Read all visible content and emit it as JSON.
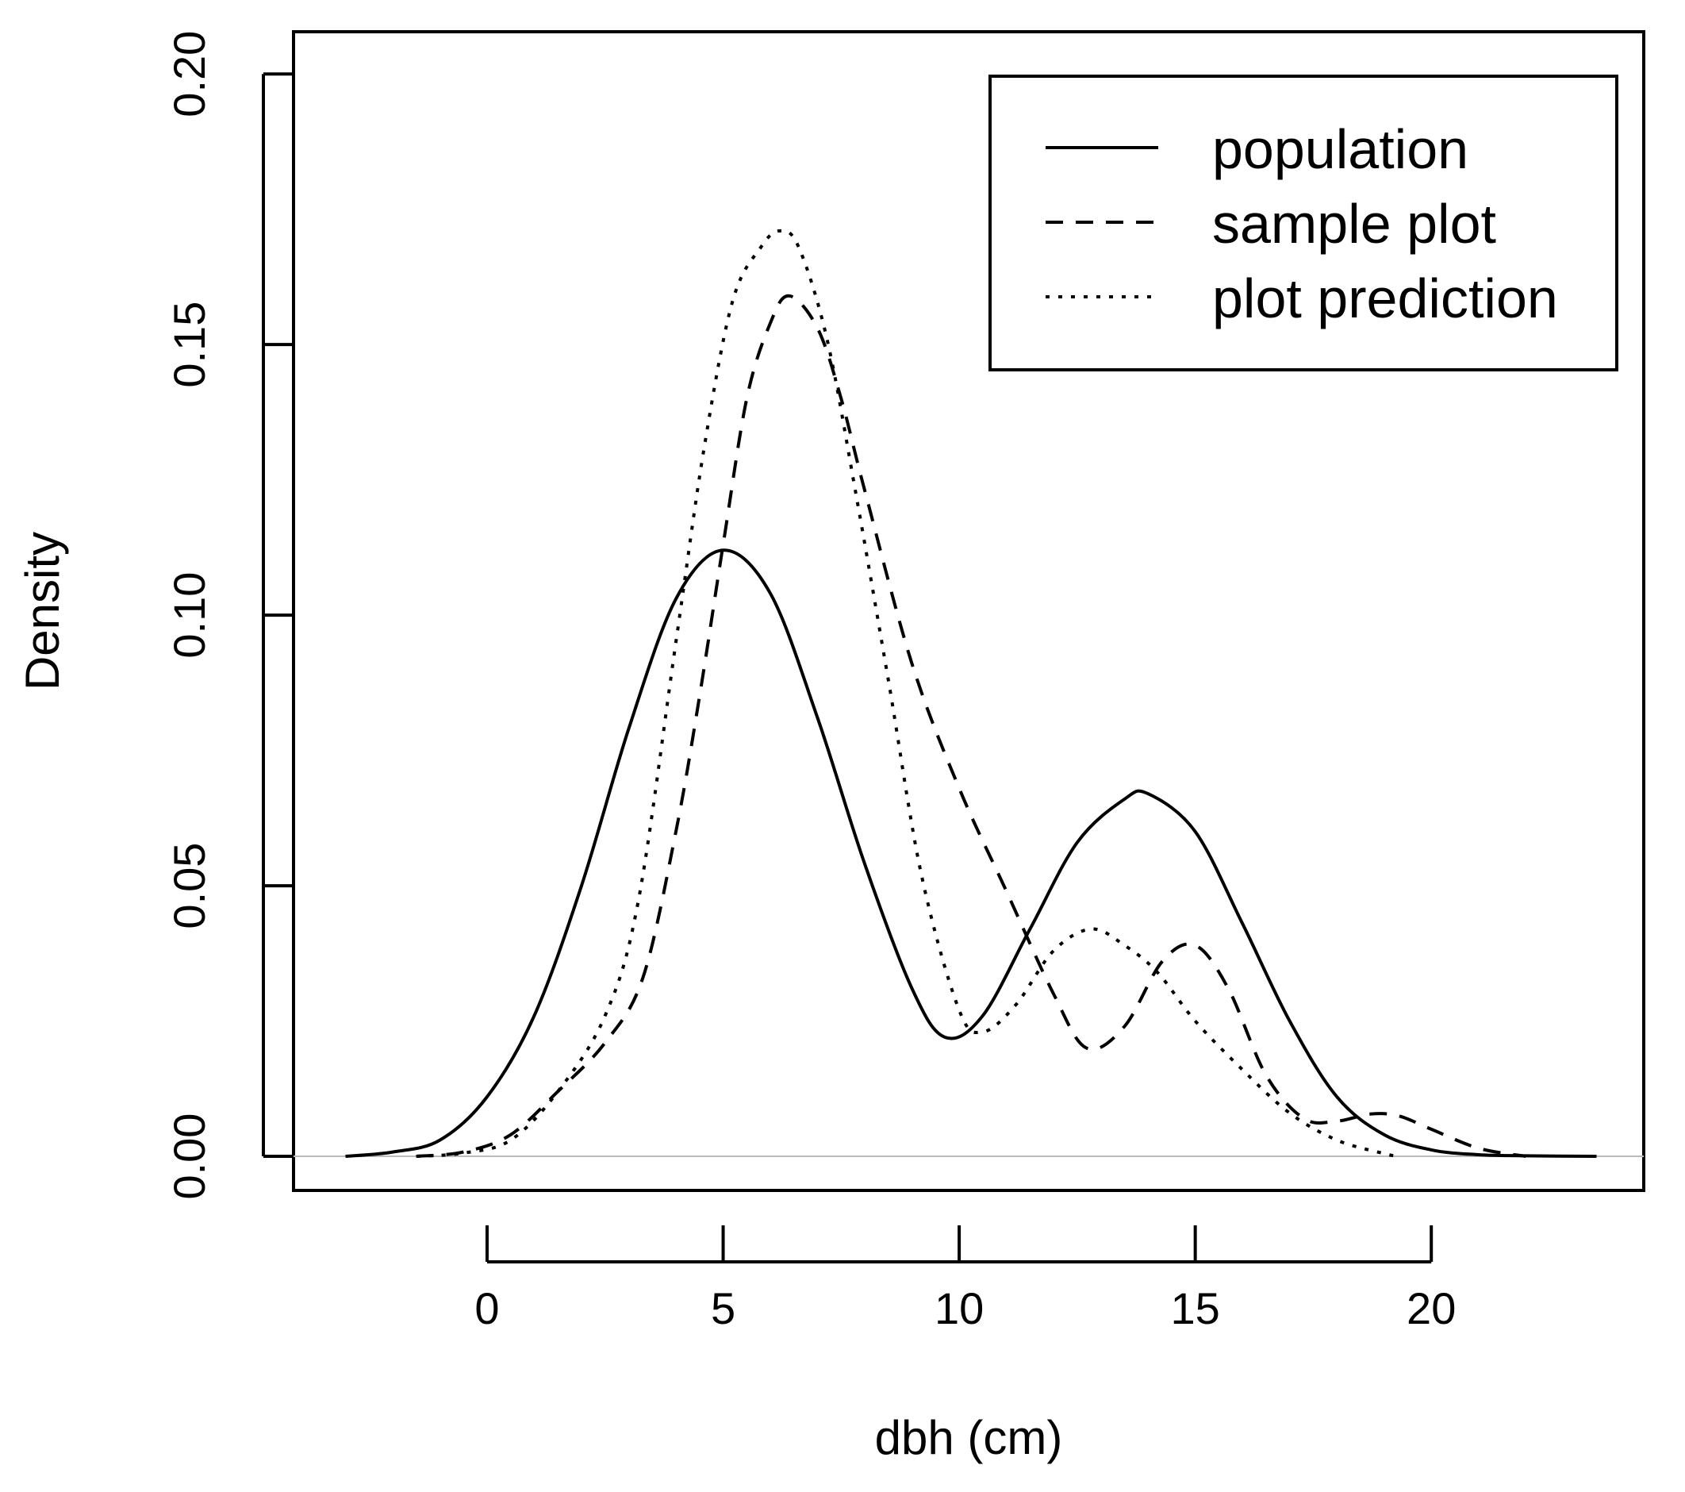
{
  "chart_data": {
    "type": "line",
    "title": "",
    "xlabel": "dbh (cm)",
    "ylabel": "Density",
    "xlim": [
      -4.1,
      24.5
    ],
    "ylim": [
      -0.0063,
      0.2078
    ],
    "x_ticks": [
      0,
      5,
      10,
      15,
      20
    ],
    "x_tick_labels": [
      "0",
      "5",
      "10",
      "15",
      "20"
    ],
    "y_ticks": [
      0.0,
      0.05,
      0.1,
      0.15,
      0.2
    ],
    "y_tick_labels": [
      "0.00",
      "0.05",
      "0.10",
      "0.15",
      "0.20"
    ],
    "grid": false,
    "zero_line": true,
    "legend": {
      "position": "top-right"
    },
    "colors": {
      "line": "#000000",
      "zero_line": "#bbbbbb"
    },
    "series": [
      {
        "name": "population",
        "style": "solid",
        "x": [
          -3,
          -2,
          -1,
          0,
          1,
          2,
          3,
          4,
          5,
          6,
          7,
          8,
          9,
          9.7,
          10.5,
          11.5,
          12.5,
          13.5,
          14,
          15,
          16,
          17,
          18,
          19,
          20,
          21,
          22,
          23.5
        ],
        "y": [
          0.0,
          0.0008,
          0.003,
          0.011,
          0.026,
          0.05,
          0.079,
          0.103,
          0.112,
          0.104,
          0.081,
          0.054,
          0.031,
          0.022,
          0.026,
          0.042,
          0.058,
          0.066,
          0.067,
          0.06,
          0.043,
          0.025,
          0.011,
          0.004,
          0.0012,
          0.0003,
          0.0001,
          0.0
        ]
      },
      {
        "name": "sample plot",
        "style": "dashed",
        "x": [
          -1.5,
          -0.5,
          0.5,
          1.5,
          2.5,
          3.3,
          4,
          4.5,
          5,
          5.5,
          6,
          6.4,
          7,
          7.5,
          8,
          9,
          10,
          11,
          12,
          12.7,
          13.5,
          14.3,
          15,
          15.7,
          16.5,
          17.3,
          18,
          18.7,
          19.3,
          20,
          21,
          22
        ],
        "y": [
          0.0,
          0.0008,
          0.004,
          0.012,
          0.021,
          0.033,
          0.06,
          0.085,
          0.113,
          0.14,
          0.154,
          0.159,
          0.153,
          0.14,
          0.123,
          0.091,
          0.068,
          0.049,
          0.03,
          0.02,
          0.024,
          0.036,
          0.039,
          0.031,
          0.015,
          0.007,
          0.0065,
          0.0078,
          0.0075,
          0.005,
          0.0015,
          0.0
        ]
      },
      {
        "name": "plot prediction",
        "style": "dotted",
        "x": [
          -1.5,
          -0.5,
          0.5,
          1.5,
          2.5,
          3.2,
          4,
          4.6,
          5.2,
          5.8,
          6.2,
          6.6,
          7.2,
          7.8,
          8.5,
          9.2,
          10,
          10.5,
          11.2,
          12,
          12.8,
          13.5,
          14.2,
          15,
          16,
          17,
          18,
          19,
          19.3
        ],
        "y": [
          0.0,
          0.0006,
          0.003,
          0.012,
          0.026,
          0.047,
          0.095,
          0.131,
          0.158,
          0.168,
          0.171,
          0.168,
          0.151,
          0.123,
          0.088,
          0.052,
          0.027,
          0.023,
          0.028,
          0.038,
          0.042,
          0.039,
          0.034,
          0.025,
          0.016,
          0.008,
          0.003,
          0.0005,
          0.0
        ]
      }
    ]
  }
}
